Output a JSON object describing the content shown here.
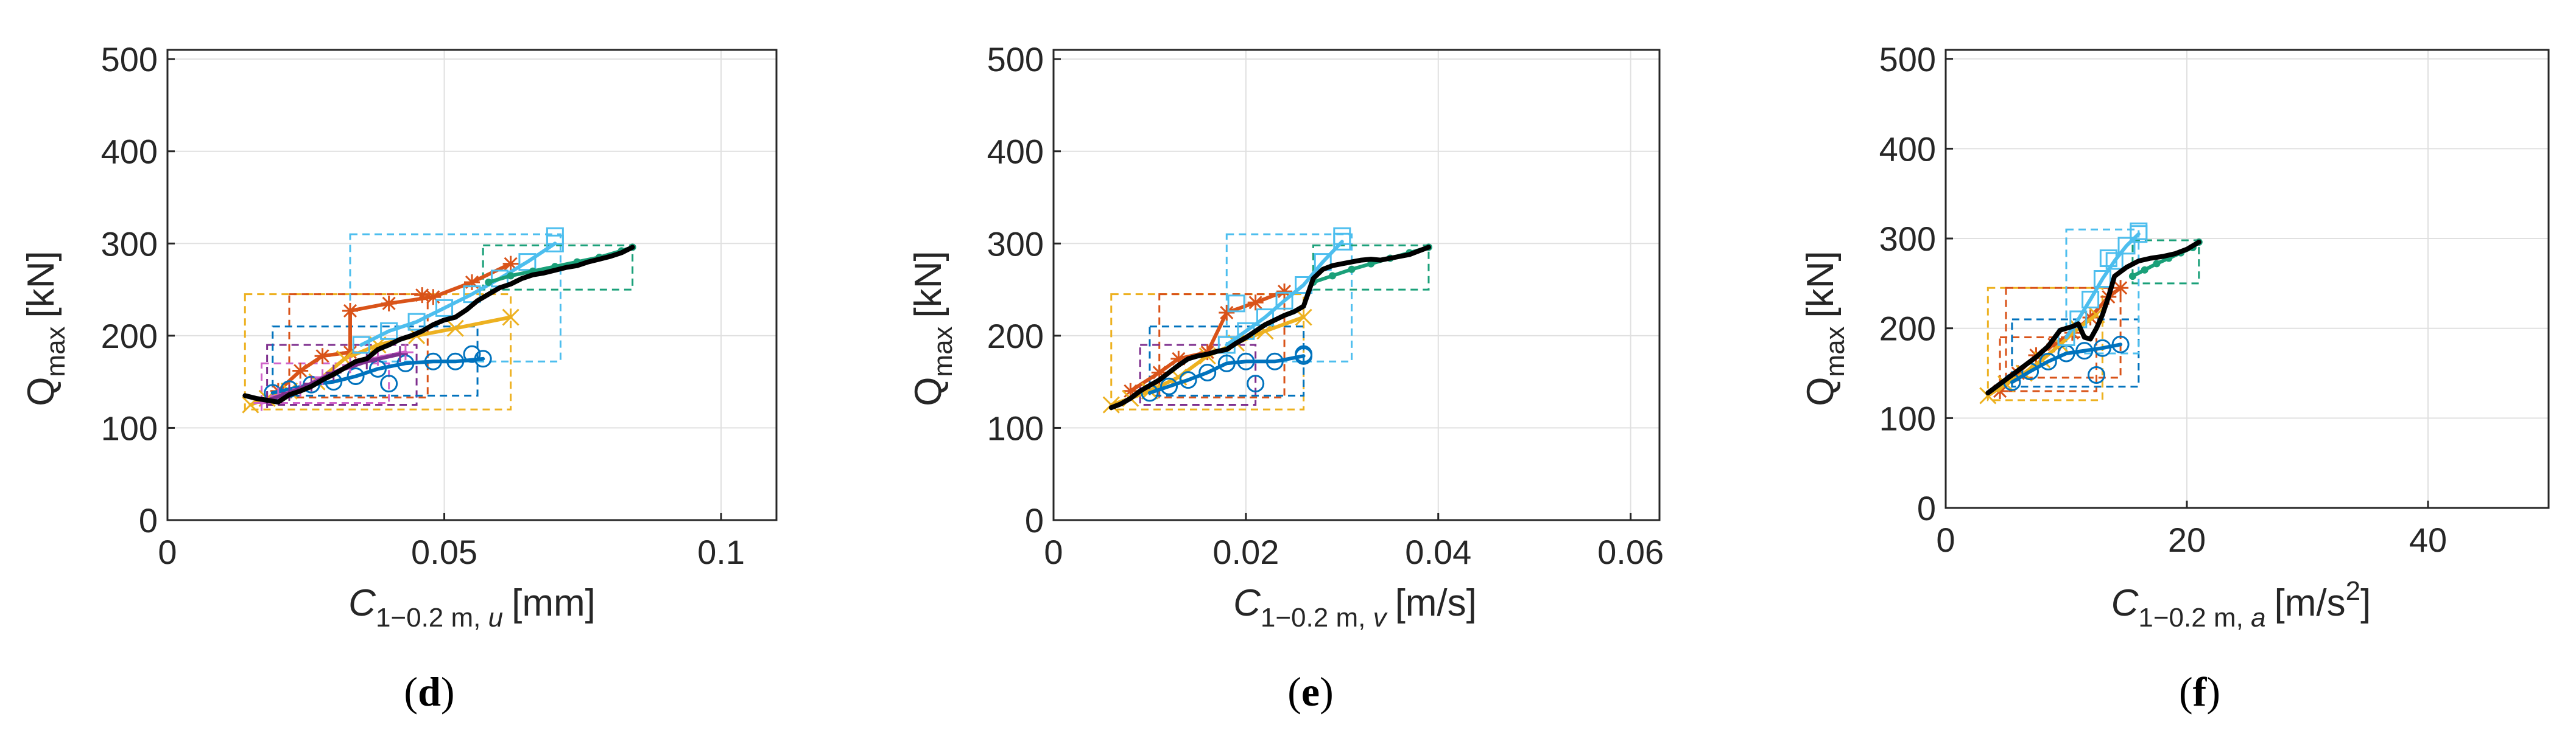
{
  "figure": {
    "panels": [
      {
        "label_open": "(",
        "label_letter": "d",
        "label_close": ")"
      },
      {
        "label_open": "(",
        "label_letter": "e",
        "label_close": ")"
      },
      {
        "label_open": "(",
        "label_letter": "f",
        "label_close": ")"
      }
    ]
  },
  "colors": {
    "black": "#000000",
    "blue": "#0072BD",
    "orange": "#D95319",
    "yellow": "#EDB120",
    "purple": "#7E2F8E",
    "green": "#77AC30",
    "cyan": "#4DBEEE",
    "teal": "#1AA079",
    "magenta": "#D062C9",
    "grid": "#E0E0E0",
    "axis": "#262626"
  },
  "chart_data": [
    {
      "type": "line",
      "panel": "d",
      "ylabel_main": "Q",
      "ylabel_sub": "max",
      "ylabel_unit": "[kN]",
      "xlabel_main": "C",
      "xlabel_sub_plain": "1−0.2 m, ",
      "xlabel_sub_italic": "u",
      "xlabel_unit": "[mm]",
      "xlim": [
        0,
        0.11
      ],
      "ylim": [
        0,
        510
      ],
      "xticks": [
        0,
        0.05,
        0.1
      ],
      "xtick_labels": [
        "0",
        "0.05",
        "0.1"
      ],
      "yticks": [
        0,
        100,
        200,
        300,
        400,
        500
      ],
      "ytick_labels": [
        "0",
        "100",
        "200",
        "300",
        "400",
        "500"
      ],
      "boxes": [
        {
          "color": "yellow",
          "x": [
            0.014,
            0.062
          ],
          "y": [
            120,
            245
          ]
        },
        {
          "color": "orange",
          "x": [
            0.022,
            0.047
          ],
          "y": [
            133,
            245
          ]
        },
        {
          "color": "purple",
          "x": [
            0.018,
            0.045
          ],
          "y": [
            125,
            190
          ]
        },
        {
          "color": "blue",
          "x": [
            0.019,
            0.056
          ],
          "y": [
            135,
            210
          ]
        },
        {
          "color": "cyan",
          "x": [
            0.033,
            0.071
          ],
          "y": [
            172,
            310
          ]
        },
        {
          "color": "teal",
          "x": [
            0.057,
            0.084
          ],
          "y": [
            250,
            298
          ]
        },
        {
          "color": "magenta",
          "x": [
            0.017,
            0.04
          ],
          "y": [
            127,
            170
          ]
        }
      ],
      "series": [
        {
          "name": "orange",
          "color": "orange",
          "marker": "star",
          "x": [
            0.02,
            0.024,
            0.028,
            0.033,
            0.033,
            0.04,
            0.048,
            0.055,
            0.062
          ],
          "y": [
            140,
            162,
            178,
            182,
            227,
            235,
            242,
            258,
            278
          ]
        },
        {
          "name": "yellow",
          "color": "yellow",
          "marker": "x",
          "x": [
            0.015,
            0.018,
            0.022,
            0.027,
            0.032,
            0.038,
            0.045,
            0.052,
            0.062
          ],
          "y": [
            125,
            132,
            140,
            150,
            175,
            190,
            200,
            208,
            220
          ]
        },
        {
          "name": "blue",
          "color": "blue",
          "marker": "circle",
          "x": [
            0.019,
            0.022,
            0.026,
            0.03,
            0.034,
            0.038,
            0.043,
            0.048,
            0.052,
            0.057
          ],
          "y": [
            138,
            142,
            147,
            150,
            156,
            164,
            170,
            172,
            172,
            175
          ]
        },
        {
          "name": "magenta",
          "color": "magenta",
          "marker": "plus",
          "x": [
            0.017,
            0.02,
            0.024,
            0.028,
            0.033,
            0.038,
            0.043
          ],
          "y": [
            127,
            135,
            142,
            155,
            168,
            176,
            182
          ]
        },
        {
          "name": "purple",
          "color": "purple",
          "marker": "plus",
          "x": [
            0.018,
            0.022,
            0.026,
            0.03,
            0.036,
            0.042
          ],
          "y": [
            130,
            138,
            148,
            160,
            172,
            180
          ]
        },
        {
          "name": "cyan",
          "color": "cyan",
          "marker": "square",
          "x": [
            0.035,
            0.04,
            0.045,
            0.05,
            0.055,
            0.06,
            0.065,
            0.07
          ],
          "y": [
            190,
            205,
            215,
            230,
            245,
            262,
            280,
            300
          ]
        },
        {
          "name": "teal",
          "color": "teal",
          "marker": "point",
          "x": [
            0.058,
            0.062,
            0.066,
            0.07,
            0.074,
            0.078,
            0.082,
            0.084
          ],
          "y": [
            258,
            265,
            270,
            275,
            280,
            285,
            292,
            296
          ]
        },
        {
          "name": "mean",
          "color": "black",
          "marker": "none",
          "x": [
            0.014,
            0.016,
            0.018,
            0.02,
            0.022,
            0.024,
            0.026,
            0.028,
            0.03,
            0.032,
            0.034,
            0.036,
            0.038,
            0.04,
            0.042,
            0.044,
            0.046,
            0.048,
            0.05,
            0.052,
            0.054,
            0.056,
            0.058,
            0.06,
            0.062,
            0.064,
            0.066,
            0.068,
            0.07,
            0.072,
            0.074,
            0.076,
            0.078,
            0.08,
            0.082,
            0.084
          ],
          "y": [
            135,
            132,
            130,
            128,
            136,
            140,
            145,
            152,
            158,
            165,
            172,
            175,
            185,
            190,
            196,
            200,
            205,
            212,
            217,
            220,
            228,
            238,
            245,
            252,
            256,
            262,
            266,
            268,
            271,
            274,
            276,
            280,
            283,
            286,
            290,
            296
          ]
        }
      ],
      "point_markers": [
        {
          "series": "blue",
          "x": 0.04,
          "y": 148
        },
        {
          "series": "blue",
          "x": 0.055,
          "y": 180
        },
        {
          "series": "cyan",
          "x": 0.07,
          "y": 308
        },
        {
          "series": "orange",
          "x": 0.046,
          "y": 244
        }
      ]
    },
    {
      "type": "line",
      "panel": "e",
      "ylabel_main": "Q",
      "ylabel_sub": "max",
      "ylabel_unit": "[kN]",
      "xlabel_main": "C",
      "xlabel_sub_plain": "1−0.2 m, ",
      "xlabel_sub_italic": "v",
      "xlabel_unit": "[m/s]",
      "xlim": [
        0,
        0.063
      ],
      "ylim": [
        0,
        510
      ],
      "xticks": [
        0,
        0.02,
        0.04,
        0.06
      ],
      "xtick_labels": [
        "0",
        "0.02",
        "0.04",
        "0.06"
      ],
      "yticks": [
        0,
        100,
        200,
        300,
        400,
        500
      ],
      "ytick_labels": [
        "0",
        "100",
        "200",
        "300",
        "400",
        "500"
      ],
      "boxes": [
        {
          "color": "yellow",
          "x": [
            0.006,
            0.026
          ],
          "y": [
            120,
            245
          ]
        },
        {
          "color": "orange",
          "x": [
            0.011,
            0.024
          ],
          "y": [
            133,
            245
          ]
        },
        {
          "color": "purple",
          "x": [
            0.009,
            0.021
          ],
          "y": [
            125,
            190
          ]
        },
        {
          "color": "blue",
          "x": [
            0.01,
            0.026
          ],
          "y": [
            135,
            210
          ]
        },
        {
          "color": "cyan",
          "x": [
            0.018,
            0.031
          ],
          "y": [
            172,
            310
          ]
        },
        {
          "color": "teal",
          "x": [
            0.027,
            0.039
          ],
          "y": [
            250,
            298
          ]
        }
      ],
      "series": [
        {
          "name": "orange",
          "color": "orange",
          "marker": "star",
          "x": [
            0.008,
            0.011,
            0.013,
            0.016,
            0.018,
            0.021,
            0.024
          ],
          "y": [
            140,
            160,
            175,
            182,
            225,
            236,
            248
          ]
        },
        {
          "name": "yellow",
          "color": "yellow",
          "marker": "x",
          "x": [
            0.006,
            0.008,
            0.01,
            0.013,
            0.016,
            0.019,
            0.022,
            0.026
          ],
          "y": [
            125,
            132,
            140,
            155,
            178,
            192,
            205,
            220
          ]
        },
        {
          "name": "blue",
          "color": "blue",
          "marker": "circle",
          "x": [
            0.01,
            0.012,
            0.014,
            0.016,
            0.018,
            0.02,
            0.023,
            0.026
          ],
          "y": [
            138,
            145,
            152,
            160,
            170,
            172,
            172,
            178
          ]
        },
        {
          "name": "cyan",
          "color": "cyan",
          "marker": "square",
          "x": [
            0.018,
            0.02,
            0.022,
            0.024,
            0.026,
            0.028,
            0.03
          ],
          "y": [
            190,
            205,
            220,
            238,
            255,
            280,
            302
          ]
        },
        {
          "name": "teal",
          "color": "teal",
          "marker": "point",
          "x": [
            0.027,
            0.029,
            0.031,
            0.033,
            0.035,
            0.037,
            0.039
          ],
          "y": [
            258,
            265,
            272,
            278,
            284,
            290,
            296
          ]
        },
        {
          "name": "mean",
          "color": "black",
          "marker": "none",
          "x": [
            0.006,
            0.007,
            0.008,
            0.009,
            0.01,
            0.011,
            0.012,
            0.013,
            0.014,
            0.015,
            0.016,
            0.017,
            0.018,
            0.019,
            0.02,
            0.021,
            0.022,
            0.023,
            0.024,
            0.025,
            0.026,
            0.027,
            0.028,
            0.029,
            0.03,
            0.031,
            0.032,
            0.033,
            0.034,
            0.035,
            0.036,
            0.037,
            0.038,
            0.039
          ],
          "y": [
            122,
            126,
            132,
            140,
            146,
            152,
            160,
            168,
            175,
            178,
            180,
            183,
            185,
            192,
            198,
            205,
            212,
            217,
            222,
            226,
            232,
            262,
            272,
            276,
            278,
            280,
            282,
            283,
            282,
            284,
            286,
            288,
            292,
            296
          ]
        }
      ],
      "point_markers": [
        {
          "series": "blue",
          "x": 0.021,
          "y": 148
        },
        {
          "series": "blue",
          "x": 0.026,
          "y": 180
        },
        {
          "series": "cyan",
          "x": 0.03,
          "y": 308
        },
        {
          "series": "cyan",
          "x": 0.019,
          "y": 235
        }
      ]
    },
    {
      "type": "line",
      "panel": "f",
      "ylabel_main": "Q",
      "ylabel_sub": "max",
      "ylabel_unit": "[kN]",
      "xlabel_main": "C",
      "xlabel_sub_plain": "1−0.2 m, ",
      "xlabel_sub_italic": "a",
      "xlabel_unit": "[m/s",
      "xlabel_unit_sup": "2",
      "xlabel_unit_close": "]",
      "xlim": [
        0,
        50
      ],
      "ylim": [
        0,
        510
      ],
      "xticks": [
        0,
        20,
        40
      ],
      "xtick_labels": [
        "0",
        "20",
        "40"
      ],
      "yticks": [
        0,
        100,
        200,
        300,
        400,
        500
      ],
      "ytick_labels": [
        "0",
        "100",
        "200",
        "300",
        "400",
        "500"
      ],
      "boxes": [
        {
          "color": "yellow",
          "x": [
            3.5,
            13.0
          ],
          "y": [
            120,
            245
          ]
        },
        {
          "color": "orange",
          "x": [
            5.0,
            14.5
          ],
          "y": [
            145,
            245
          ]
        },
        {
          "color": "orange",
          "x": [
            4.5,
            12.5
          ],
          "y": [
            130,
            190
          ]
        },
        {
          "color": "blue",
          "x": [
            5.5,
            16.0
          ],
          "y": [
            135,
            210
          ]
        },
        {
          "color": "cyan",
          "x": [
            10.0,
            16.0
          ],
          "y": [
            172,
            310
          ]
        },
        {
          "color": "teal",
          "x": [
            15.5,
            21.0
          ],
          "y": [
            250,
            298
          ]
        }
      ],
      "series": [
        {
          "name": "orange",
          "color": "orange",
          "marker": "star",
          "x": [
            4.5,
            6.0,
            7.5,
            9.0,
            10.5,
            12.0,
            13.5,
            14.5
          ],
          "y": [
            130,
            150,
            170,
            182,
            195,
            212,
            235,
            245
          ]
        },
        {
          "name": "yellow",
          "color": "yellow",
          "marker": "x",
          "x": [
            3.5,
            5.0,
            6.5,
            8.0,
            9.5,
            11.0,
            12.5
          ],
          "y": [
            125,
            138,
            150,
            165,
            182,
            200,
            215
          ]
        },
        {
          "name": "blue",
          "color": "blue",
          "marker": "circle",
          "x": [
            5.5,
            7.0,
            8.5,
            10.0,
            11.5,
            13.0,
            14.5
          ],
          "y": [
            140,
            152,
            163,
            172,
            175,
            178,
            182
          ]
        },
        {
          "name": "cyan",
          "color": "cyan",
          "marker": "square",
          "x": [
            10.0,
            11.0,
            12.0,
            13.0,
            14.0,
            15.0,
            16.0
          ],
          "y": [
            190,
            210,
            232,
            255,
            275,
            292,
            305
          ]
        },
        {
          "name": "teal",
          "color": "teal",
          "marker": "point",
          "x": [
            15.5,
            16.5,
            17.5,
            18.5,
            19.5,
            20.5,
            21.0
          ],
          "y": [
            258,
            265,
            272,
            278,
            284,
            290,
            296
          ]
        },
        {
          "name": "mean",
          "color": "black",
          "marker": "none",
          "x": [
            3.5,
            4.5,
            5.5,
            6.5,
            7.5,
            8.5,
            9.5,
            10.5,
            11.0,
            11.5,
            12.0,
            12.5,
            13.0,
            13.5,
            14.0,
            15.0,
            16.0,
            17.0,
            18.0,
            19.0,
            20.0,
            21.0
          ],
          "y": [
            128,
            138,
            148,
            158,
            168,
            180,
            198,
            202,
            205,
            190,
            188,
            200,
            215,
            235,
            258,
            268,
            275,
            278,
            280,
            283,
            288,
            296
          ]
        }
      ],
      "point_markers": [
        {
          "series": "blue",
          "x": 12.5,
          "y": 148
        },
        {
          "series": "cyan",
          "x": 16.0,
          "y": 308
        },
        {
          "series": "cyan",
          "x": 13.5,
          "y": 278
        }
      ]
    }
  ]
}
